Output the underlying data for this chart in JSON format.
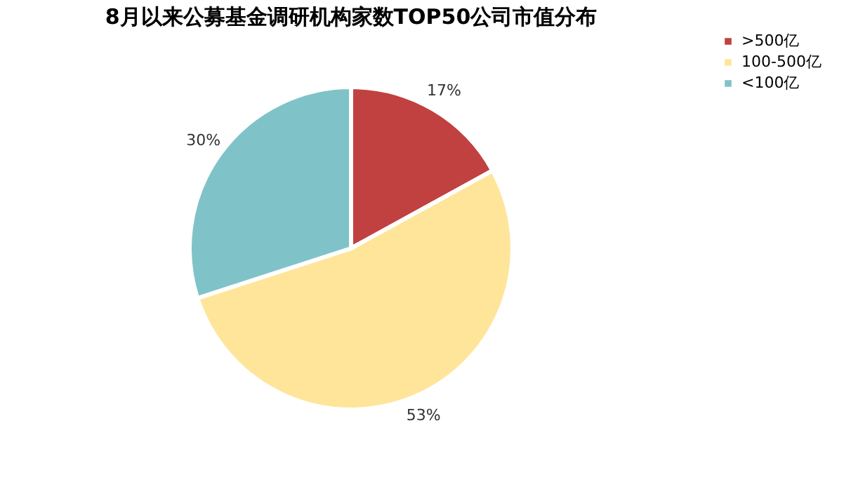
{
  "chart_data": {
    "type": "pie",
    "title": "8月以来公募基金调研机构家数TOP50公司市值分布",
    "categories": [
      ">500亿",
      "100-500亿",
      "<100亿"
    ],
    "values": [
      17,
      53,
      30
    ],
    "colors": [
      "#c0413f",
      "#ffe59a",
      "#7fc3c8"
    ],
    "value_labels": [
      "17%",
      "53%",
      "30%"
    ],
    "legend": "right"
  }
}
